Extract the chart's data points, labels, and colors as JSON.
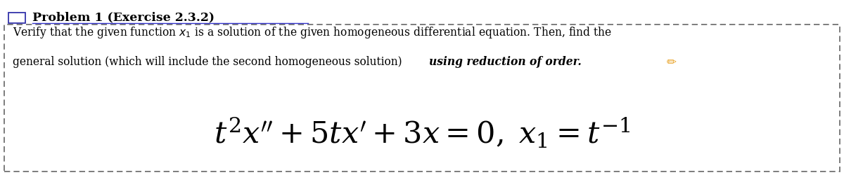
{
  "title": "Problem 1 (Exercise 2.3.2)",
  "description_line1": "Verify that the given function $x_1$ is a solution of the given homogeneous differential equation. Then, find the",
  "description_line2_normal": "general solution (which will include the second homogeneous solution) ",
  "description_line2_bold": "using reduction of order.",
  "equation": "$t^2x'' + 5tx' + 3x = 0, \\; x_1 = t^{-1}$",
  "bg_color": "#ffffff",
  "title_color": "#000000",
  "text_color": "#000000",
  "border_color": "#666666",
  "title_underline_color": "#3333cc",
  "pencil_color": "#e8a020",
  "fig_width": 12.0,
  "fig_height": 2.51
}
